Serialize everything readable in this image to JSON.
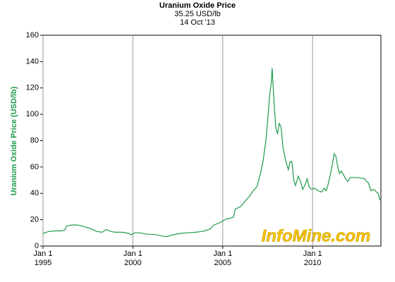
{
  "chart_data": {
    "type": "line",
    "title": "Uranium Oxide Price",
    "subtitle": "35.25 USD/lb",
    "date": "14 Oct '13",
    "y_label": "Uranium Oxide Price (USD/lb)",
    "watermark": "InfoMine.com",
    "x": [
      1995.0,
      1995.3,
      1995.7,
      1996.0,
      1996.2,
      1996.3,
      1996.6,
      1996.9,
      1997.2,
      1997.6,
      1998.0,
      1998.3,
      1998.5,
      1998.8,
      1999.0,
      1999.4,
      1999.8,
      1999.9,
      2000.1,
      2000.4,
      2000.8,
      2001.2,
      2001.5,
      2001.8,
      2002.0,
      2002.2,
      2002.6,
      2003.0,
      2003.5,
      2003.8,
      2004.0,
      2004.3,
      2004.5,
      2004.8,
      2005.0,
      2005.2,
      2005.4,
      2005.6,
      2005.7,
      2006.0,
      2006.3,
      2006.5,
      2006.7,
      2006.9,
      2007.1,
      2007.25,
      2007.4,
      2007.5,
      2007.6,
      2007.7,
      2007.75,
      2007.85,
      2007.95,
      2008.05,
      2008.15,
      2008.25,
      2008.35,
      2008.5,
      2008.65,
      2008.75,
      2008.85,
      2008.95,
      2009.05,
      2009.2,
      2009.3,
      2009.45,
      2009.6,
      2009.7,
      2009.8,
      2009.95,
      2010.1,
      2010.3,
      2010.5,
      2010.65,
      2010.75,
      2010.85,
      2011.0,
      2011.1,
      2011.2,
      2011.3,
      2011.4,
      2011.5,
      2011.6,
      2011.8,
      2011.95,
      2012.1,
      2012.5,
      2012.9,
      2013.0,
      2013.1,
      2013.25,
      2013.4,
      2013.55,
      2013.65,
      2013.75,
      2013.8
    ],
    "series": [
      {
        "name": "Uranium Oxide Price",
        "color": "#1e9a49",
        "values": [
          9.5,
          11,
          11.5,
          11.5,
          12,
          15,
          16,
          16,
          15,
          13.5,
          11,
          10.5,
          12.5,
          11,
          10.5,
          10.5,
          9.5,
          8.5,
          10,
          10,
          9,
          8.8,
          8,
          7.2,
          7.5,
          8.5,
          9.5,
          10,
          10.5,
          11,
          11.5,
          13,
          16,
          17.5,
          19,
          20.5,
          21,
          22,
          28,
          30,
          35,
          38,
          42,
          45,
          55,
          65,
          80,
          95,
          113,
          124,
          135,
          110,
          90,
          85,
          93,
          90,
          75,
          65,
          58,
          64,
          64,
          50,
          46,
          53,
          50,
          43,
          47,
          51,
          45,
          43,
          44,
          42,
          41,
          44,
          42,
          46,
          55,
          62,
          70,
          68,
          60,
          55,
          57,
          52,
          49,
          52,
          52,
          51,
          49,
          48,
          42,
          43,
          41,
          40,
          35,
          35.25
        ]
      }
    ],
    "xlim": [
      1995,
      2013.8
    ],
    "xticks": [
      {
        "value": 1995,
        "label": "Jan 1\n1995"
      },
      {
        "value": 2000,
        "label": "Jan 1\n2000"
      },
      {
        "value": 2005,
        "label": "Jan 1\n2005"
      },
      {
        "value": 2010,
        "label": "Jan 1\n2010"
      }
    ],
    "ylim": [
      0,
      160
    ],
    "yticks": [
      0,
      20,
      40,
      60,
      80,
      100,
      120,
      140,
      160
    ],
    "grid": "x"
  }
}
